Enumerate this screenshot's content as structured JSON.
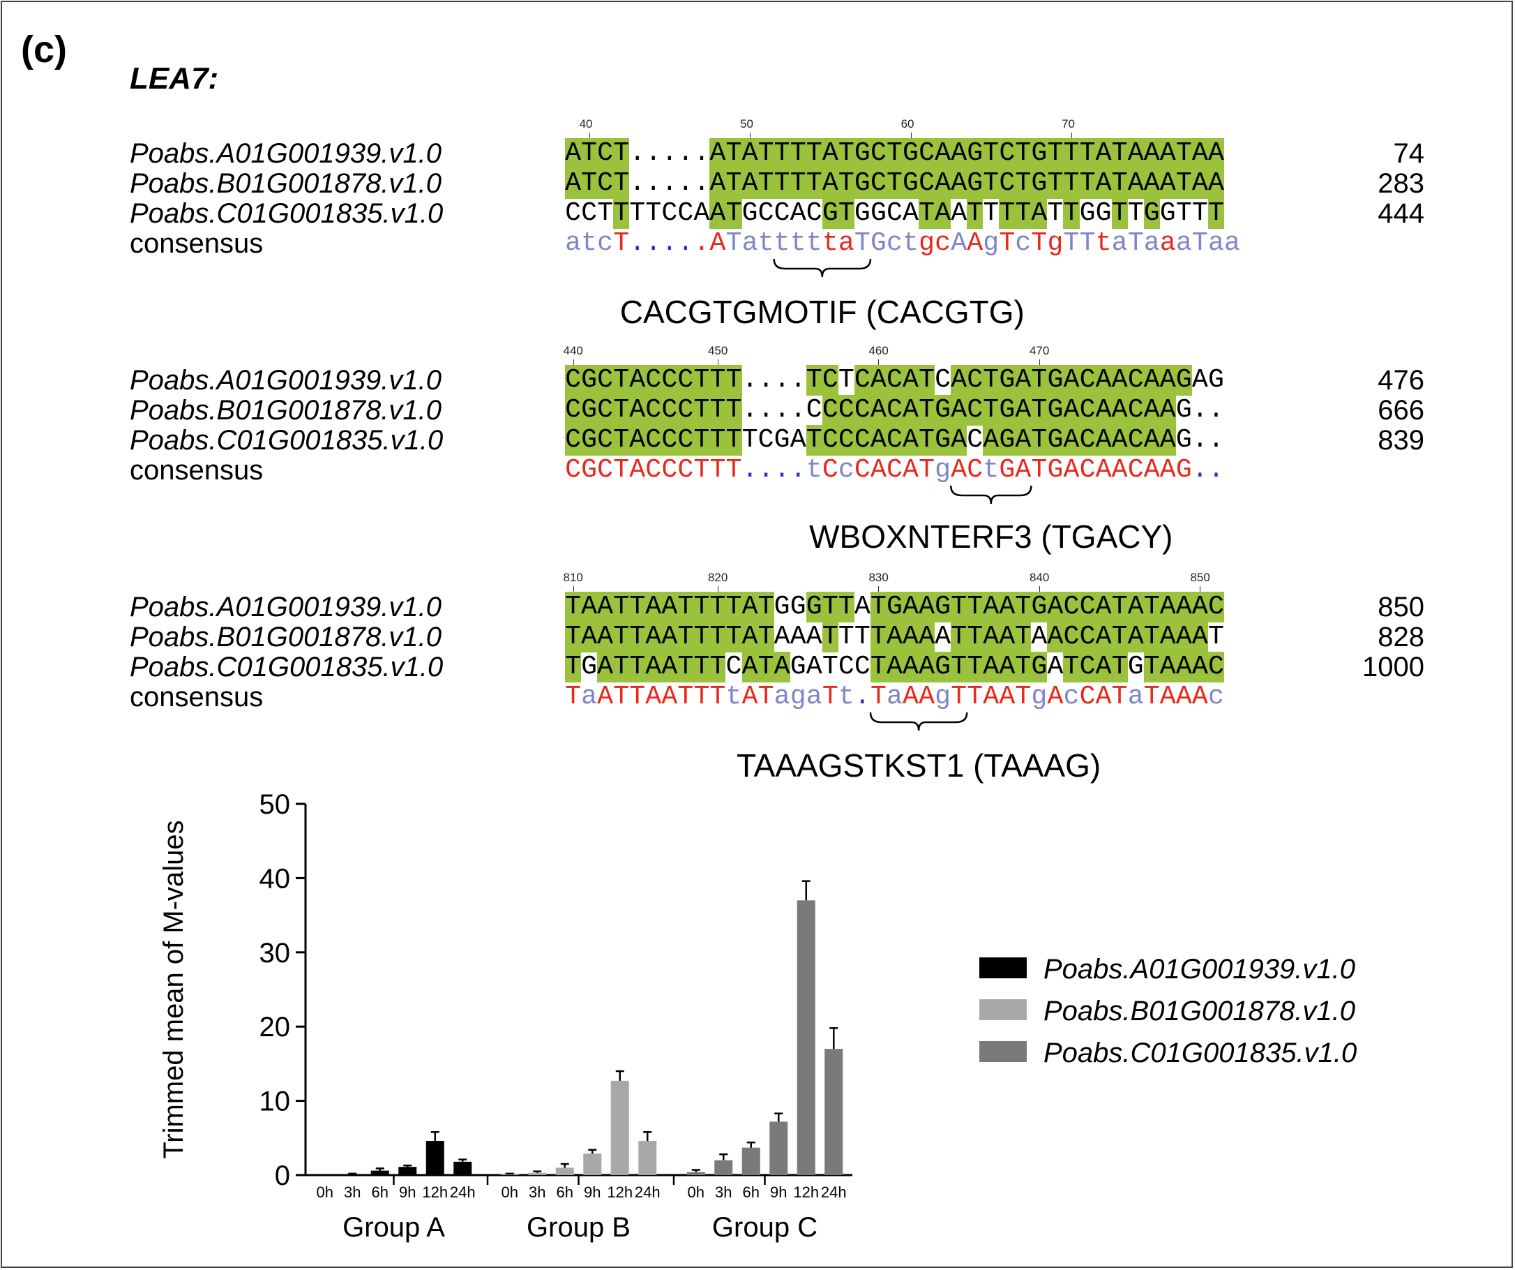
{
  "panel_label": "(c)",
  "title": "LEA7:",
  "consensus_label": "consensus",
  "alignments": [
    {
      "ruler": [
        {
          "label": "40",
          "col": 1
        },
        {
          "label": "50",
          "col": 11
        },
        {
          "label": "60",
          "col": 21
        },
        {
          "label": "70",
          "col": 31
        }
      ],
      "rows": [
        {
          "name": "Poabs.A01G001939.v1.0",
          "seq": "ATCT.....ATATTTTATGCTGCAAGTCTGTTTATAAATAA",
          "hl": "111100000111111111111111111111111111111111",
          "pos": "74"
        },
        {
          "name": "Poabs.B01G001878.v1.0",
          "seq": "ATCT.....ATATTTTATGCTGCAAGTCTGTTTATAAATAA",
          "hl": "111100000111111111111111111111111111111111",
          "pos": "283"
        },
        {
          "name": "Poabs.C01G001835.v1.0",
          "seq": "CCTTTTCCAATGCCACGTGGCATAATTTTATTGGTTGGTTT",
          "hl": "000100000110000011000011010111010010100010",
          "pos": "444"
        }
      ],
      "consensus": {
        "seq": "atcT.....ATatttttaTGctgcAAgTcTgTTtaTaaaTaa",
        "colors": "bbbrddddrrbbbbbbrrbbbbrrbrbrbrrbbrbbbrbb"
      },
      "motif": "CACGTGMOTIF (CACGTG)"
    },
    {
      "ruler": [
        {
          "label": "440",
          "col": 0
        },
        {
          "label": "450",
          "col": 9
        },
        {
          "label": "460",
          "col": 19
        },
        {
          "label": "470",
          "col": 29
        }
      ],
      "rows": [
        {
          "name": "Poabs.A01G001939.v1.0",
          "seq": "CGCTACCCTTT....TCTCACATCACTGATGACAACAAGAG",
          "hl": "1111111111100001101111101111111111111110",
          "pos": "476"
        },
        {
          "name": "Poabs.B01G001878.v1.0",
          "seq": "CGCTACCCTTT....CCCCACATGACTGATGACAACAAG..",
          "hl": "1111111111100000111111111111111111111100",
          "pos": "666"
        },
        {
          "name": "Poabs.C01G001835.v1.0",
          "seq": "CGCTACCCTTTTCGATCCCACATGACAGATGACAACAAG..",
          "hl": "1111111111100001111111111011111111111100",
          "pos": "839"
        }
      ],
      "consensus": {
        "seq": "CGCTACCCTTT....tCcCACATgACtGATGACAACAAG..",
        "colors": "rrrrrrrrrrrddddbrbrrrrrbrrbrrrrrrrrrrrrdd"
      },
      "motif": "WBOXNTERF3 (TGACY)"
    },
    {
      "ruler": [
        {
          "label": "810",
          "col": 0
        },
        {
          "label": "820",
          "col": 9
        },
        {
          "label": "830",
          "col": 19
        },
        {
          "label": "840",
          "col": 29
        },
        {
          "label": "850",
          "col": 39
        }
      ],
      "rows": [
        {
          "name": "Poabs.A01G001939.v1.0",
          "seq": "TAATTAATTTTATGGGTTATGAAGTTAATGACCATATAAAC",
          "hl": "11111111111110011101111111111111111111111",
          "pos": "850"
        },
        {
          "name": "Poabs.B01G001878.v1.0",
          "seq": "TAATTAATTTTATAAATTTTAAAATTAATAACCATATAAAT",
          "hl": "11111111111110001001111011111011111111110",
          "pos": "828"
        },
        {
          "name": "Poabs.C01G001835.v1.0",
          "seq": "TGATTAATTTCATAGATCCTAAAGTTAATGATCATGTAAAC",
          "hl": "10111111110111000001111111111101111011111",
          "pos": "1000"
        }
      ],
      "consensus": {
        "seq": "TaATTAATTTtATagaTt.TaAAgTTAATgAcCATaTAAAc",
        "colors": "rbrrrrrrrrbrrbbbrbdrbrrbrrrrrbrbrrrbrrrrb"
      },
      "motif": "TAAAGSTKST1 (TAAAG)"
    }
  ],
  "colors": {
    "highlight": "#9ac23c",
    "conserved": "#e8281c",
    "partial": "#7f86c8",
    "gap": "#2a30d0",
    "series_a": "#000000",
    "series_b": "#a8a8a8",
    "series_c": "#7a7a7a"
  },
  "chart_data": {
    "type": "bar",
    "ylabel": "Trimmed mean of M-values",
    "ylim": [
      0,
      50
    ],
    "yticks": [
      0,
      10,
      20,
      30,
      40,
      50
    ],
    "time_labels": [
      "0h",
      "3h",
      "6h",
      "9h",
      "12h",
      "24h"
    ],
    "groups": [
      "Group A",
      "Group B",
      "Group C"
    ],
    "series": [
      {
        "name": "Poabs.A01G001939.v1.0",
        "group": "Group A",
        "values": [
          0.0,
          0.1,
          0.6,
          1.1,
          4.6,
          1.8
        ],
        "errors": [
          0.0,
          0.1,
          0.3,
          0.2,
          1.2,
          0.3
        ]
      },
      {
        "name": "Poabs.B01G001878.v1.0",
        "group": "Group B",
        "values": [
          0.1,
          0.3,
          1.0,
          2.9,
          12.7,
          4.6
        ],
        "errors": [
          0.1,
          0.2,
          0.5,
          0.5,
          1.3,
          1.2
        ]
      },
      {
        "name": "Poabs.C01G001835.v1.0",
        "group": "Group C",
        "values": [
          0.4,
          2.0,
          3.7,
          7.2,
          37.0,
          17.0
        ],
        "errors": [
          0.3,
          0.8,
          0.7,
          1.1,
          2.6,
          2.8
        ]
      }
    ],
    "legend_position": "right"
  }
}
